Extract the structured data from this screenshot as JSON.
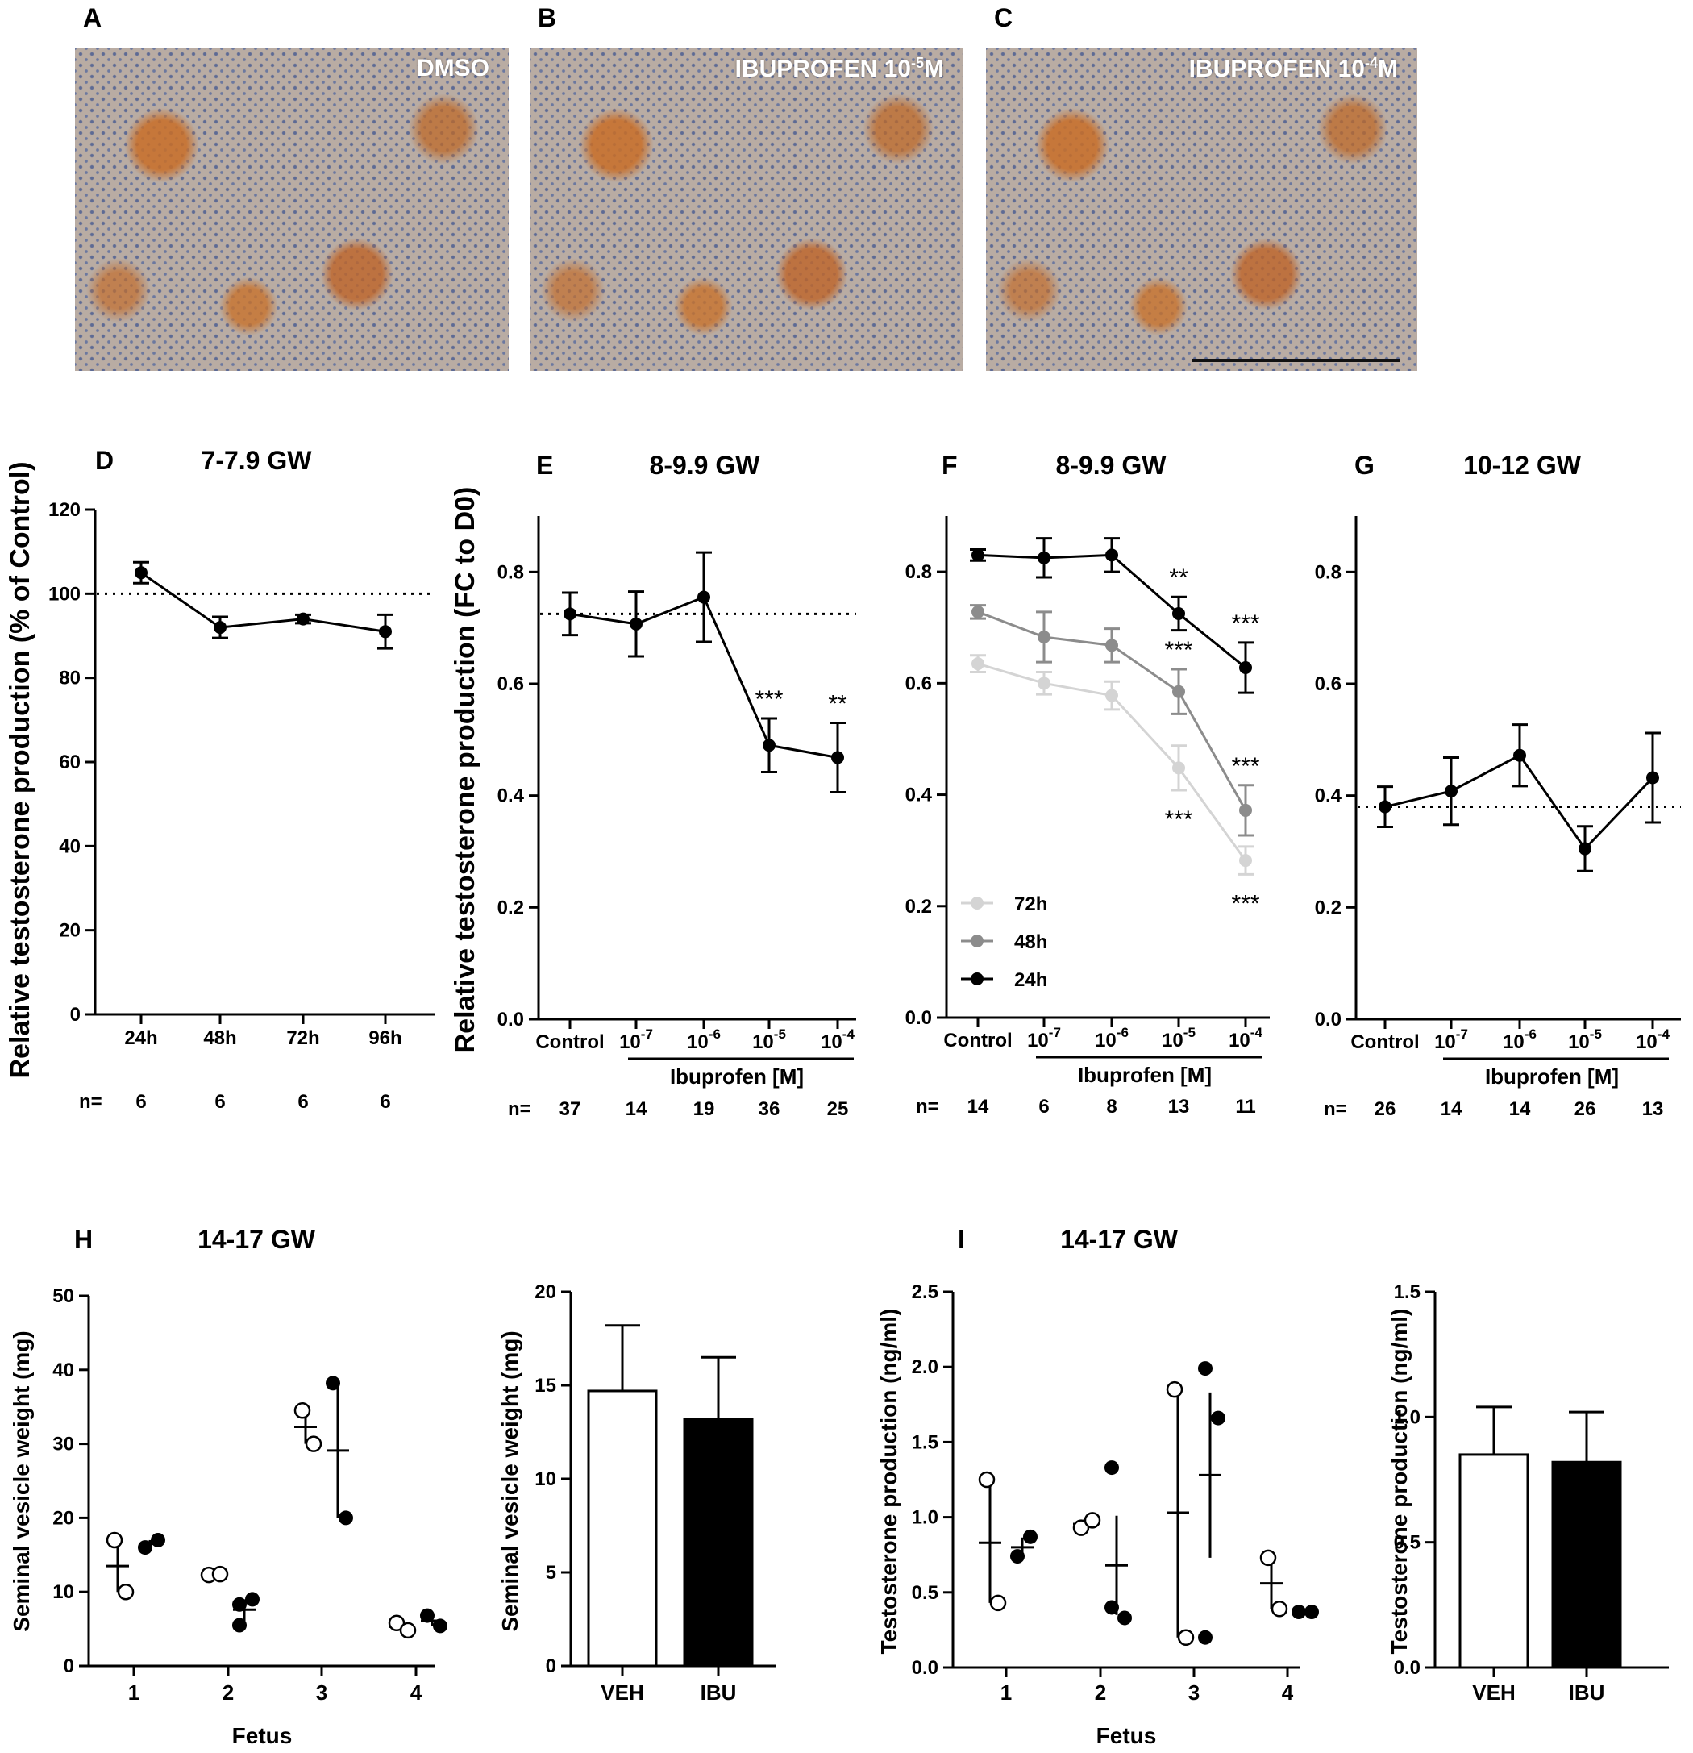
{
  "panels": {
    "A": {
      "letter": "A",
      "label": "DMSO"
    },
    "B": {
      "letter": "B",
      "label_base": "IBUPROFEN 10",
      "label_exp": "-5",
      "label_unit": "M"
    },
    "C": {
      "letter": "C",
      "label_base": "IBUPROFEN 10",
      "label_exp": "-4",
      "label_unit": "M"
    }
  },
  "shared_ylabel": "Relative testosterone production (FC to D0)",
  "chart_data": [
    {
      "id": "D",
      "letter": "D",
      "title": "7-7.9 GW",
      "type": "line",
      "ylabel": "Relative testosterone production (% of Control)",
      "categories": [
        "24h",
        "48h",
        "72h",
        "96h"
      ],
      "ylim": [
        0,
        120
      ],
      "yticks": [
        0,
        20,
        40,
        60,
        80,
        100,
        120
      ],
      "series": [
        {
          "values": [
            105,
            92,
            94,
            91
          ],
          "errors": [
            2.5,
            2.5,
            1,
            4
          ],
          "color": "#000000"
        }
      ],
      "reference_line": 100,
      "n_label": "n=",
      "n": [
        "6",
        "6",
        "6",
        "6"
      ]
    },
    {
      "id": "E",
      "letter": "E",
      "title": "8-9.9 GW",
      "type": "line",
      "categories": [
        "Control",
        "10",
        "10",
        "10",
        "10"
      ],
      "category_exponents": [
        "",
        "-7",
        "-6",
        "-5",
        "-4"
      ],
      "group_label": "Ibuprofen [M]",
      "ylim": [
        0,
        0.9
      ],
      "yticks": [
        0.0,
        0.2,
        0.4,
        0.6,
        0.8
      ],
      "series": [
        {
          "values": [
            0.725,
            0.707,
            0.755,
            0.49,
            0.468
          ],
          "errors": [
            0.038,
            0.058,
            0.08,
            0.048,
            0.062
          ],
          "color": "#000000"
        }
      ],
      "reference_line": 0.725,
      "annotations": [
        "",
        "",
        "",
        "***",
        "**"
      ],
      "n_label": "n=",
      "n": [
        "37",
        "14",
        "19",
        "36",
        "25"
      ]
    },
    {
      "id": "F",
      "letter": "F",
      "title": "8-9.9 GW",
      "type": "line",
      "categories": [
        "Control",
        "10",
        "10",
        "10",
        "10"
      ],
      "category_exponents": [
        "",
        "-7",
        "-6",
        "-5",
        "-4"
      ],
      "group_label": "Ibuprofen [M]",
      "ylim": [
        0,
        0.9
      ],
      "yticks": [
        0.0,
        0.2,
        0.4,
        0.6,
        0.8
      ],
      "legend_position": "bottom-left",
      "series": [
        {
          "name": "72h",
          "values": [
            0.635,
            0.6,
            0.578,
            0.448,
            0.282
          ],
          "errors": [
            0.015,
            0.02,
            0.025,
            0.04,
            0.025
          ],
          "color": "#d4d4d4",
          "annotations": [
            "",
            "",
            "",
            "***",
            "***"
          ]
        },
        {
          "name": "48h",
          "values": [
            0.728,
            0.683,
            0.668,
            0.585,
            0.372
          ],
          "errors": [
            0.012,
            0.045,
            0.03,
            0.04,
            0.045
          ],
          "color": "#8c8c8c",
          "annotations": [
            "",
            "",
            "",
            "***",
            "***"
          ]
        },
        {
          "name": "24h",
          "values": [
            0.83,
            0.825,
            0.83,
            0.725,
            0.628
          ],
          "errors": [
            0.01,
            0.035,
            0.03,
            0.03,
            0.045
          ],
          "color": "#000000",
          "annotations": [
            "",
            "",
            "",
            "**",
            "***"
          ]
        }
      ],
      "n_label": "n=",
      "n": [
        "14",
        "6",
        "8",
        "13",
        "11"
      ]
    },
    {
      "id": "G",
      "letter": "G",
      "title": "10-12 GW",
      "type": "line",
      "categories": [
        "Control",
        "10",
        "10",
        "10",
        "10"
      ],
      "category_exponents": [
        "",
        "-7",
        "-6",
        "-5",
        "-4"
      ],
      "group_label": "Ibuprofen [M]",
      "ylim": [
        0,
        0.9
      ],
      "yticks": [
        0.0,
        0.2,
        0.4,
        0.6,
        0.8
      ],
      "series": [
        {
          "values": [
            0.38,
            0.408,
            0.472,
            0.305,
            0.432
          ],
          "errors": [
            0.036,
            0.06,
            0.055,
            0.04,
            0.08
          ],
          "color": "#000000"
        }
      ],
      "reference_line": 0.38,
      "n_label": "n=",
      "n": [
        "26",
        "14",
        "14",
        "26",
        "13"
      ]
    },
    {
      "id": "H1",
      "letter": "H",
      "title": "14-17 GW",
      "type": "scatter",
      "ylabel": "Seminal vesicle weight (mg)",
      "xlabel": "Fetus",
      "categories": [
        "1",
        "2",
        "3",
        "4"
      ],
      "ylim": [
        0,
        50
      ],
      "yticks": [
        0,
        10,
        20,
        30,
        40,
        50
      ],
      "groups": [
        {
          "fetus": "1",
          "veh": [
            17,
            10
          ],
          "veh_mean": 13.5,
          "ibu": [
            16,
            17
          ],
          "ibu_mean": 16.5
        },
        {
          "fetus": "2",
          "veh": [
            12.3,
            12.4
          ],
          "veh_mean": 12.4,
          "ibu": [
            5.5,
            9,
            8.3
          ],
          "ibu_mean": 7.6
        },
        {
          "fetus": "3",
          "veh": [
            34.5,
            30
          ],
          "veh_mean": 32.3,
          "ibu": [
            38.2,
            20
          ],
          "ibu_mean": 29.1
        },
        {
          "fetus": "4",
          "veh": [
            5.8,
            4.8
          ],
          "veh_mean": 5.3,
          "ibu": [
            6.8,
            5.4
          ],
          "ibu_mean": 6.1
        }
      ]
    },
    {
      "id": "H2",
      "type": "bar",
      "ylabel": "Seminal vesicle weight (mg)",
      "categories": [
        "VEH",
        "IBU"
      ],
      "ylim": [
        0,
        20
      ],
      "yticks": [
        0,
        5,
        10,
        15,
        20
      ],
      "values": [
        14.7,
        13.2
      ],
      "errors": [
        3.5,
        3.3
      ],
      "fills": [
        "#ffffff",
        "#000000"
      ]
    },
    {
      "id": "I1",
      "letter": "I",
      "title": "14-17 GW",
      "type": "scatter",
      "ylabel": "Testosterone production (ng/ml)",
      "xlabel": "Fetus",
      "categories": [
        "1",
        "2",
        "3",
        "4"
      ],
      "ylim": [
        0,
        2.5
      ],
      "yticks": [
        0.0,
        0.5,
        1.0,
        1.5,
        2.0,
        2.5
      ],
      "groups": [
        {
          "fetus": "1",
          "veh": [
            1.25,
            0.43
          ],
          "veh_mean": 0.83,
          "veh_sem": 0.0,
          "ibu": [
            0.74,
            0.87
          ],
          "ibu_mean": 0.8,
          "ibu_sem": 0.065
        },
        {
          "fetus": "2",
          "veh": [
            0.93,
            0.98
          ],
          "veh_mean": 0.955,
          "veh_sem": 0.03,
          "ibu": [
            1.33,
            0.33,
            0.4
          ],
          "ibu_mean": 0.68,
          "ibu_sem": 0.33
        },
        {
          "fetus": "3",
          "veh": [
            1.85,
            0.2
          ],
          "veh_mean": 1.03,
          "veh_sem": 0.0,
          "ibu": [
            1.99,
            1.66,
            0.2
          ],
          "ibu_mean": 1.28,
          "ibu_sem": 0.55
        },
        {
          "fetus": "4",
          "veh": [
            0.73,
            0.39
          ],
          "veh_mean": 0.56,
          "veh_sem": 0.0,
          "ibu": [
            0.37,
            0.37
          ],
          "ibu_mean": 0.37,
          "ibu_sem": 0.0
        }
      ]
    },
    {
      "id": "I2",
      "type": "bar",
      "ylabel": "Testosterone production (ng/ml)",
      "categories": [
        "VEH",
        "IBU"
      ],
      "ylim": [
        0,
        1.5
      ],
      "yticks": [
        0.0,
        0.5,
        1.0,
        1.5
      ],
      "values": [
        0.85,
        0.82
      ],
      "errors": [
        0.19,
        0.2
      ],
      "fills": [
        "#ffffff",
        "#000000"
      ]
    }
  ]
}
